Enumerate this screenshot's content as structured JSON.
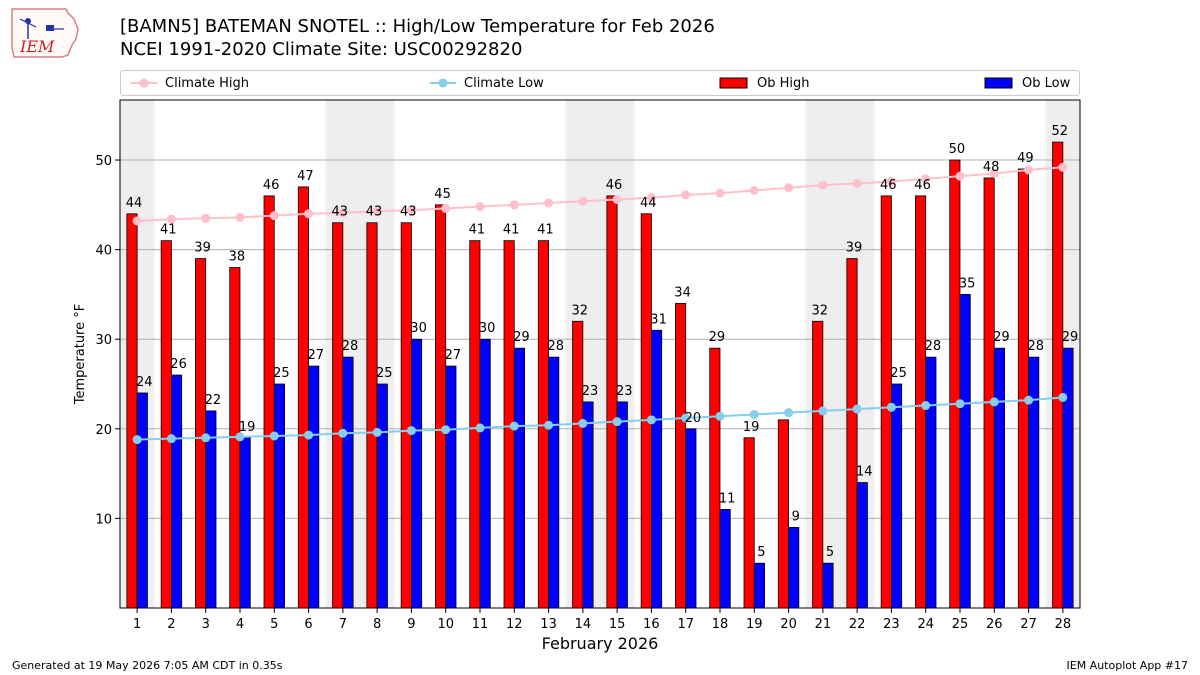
{
  "title_line1": "[BAMN5] BATEMAN SNOTEL :: High/Low Temperature for Feb 2026",
  "title_line2": "NCEI 1991-2020 Climate Site: USC00292820",
  "logo_text": "IEM",
  "footer_left": "Generated at 19 May 2026 7:05 AM CDT in 0.35s",
  "footer_right": "IEM Autoplot App #17",
  "legend": [
    {
      "label": "Climate High",
      "color": "#ffc0cb",
      "kind": "line-marker"
    },
    {
      "label": "Climate Low",
      "color": "#87ceeb",
      "kind": "line-marker"
    },
    {
      "label": "Ob High",
      "color": "#ff0000",
      "kind": "box"
    },
    {
      "label": "Ob Low",
      "color": "#0000ff",
      "kind": "box"
    }
  ],
  "colors": {
    "weekend_shade": "#eeeeee",
    "grid": "#b0b0b0"
  },
  "chart_data": {
    "type": "bar",
    "xlabel": "February 2026",
    "ylabel": "Temperature °F",
    "ylim": [
      0,
      56.7
    ],
    "yticks": [
      10,
      20,
      30,
      40,
      50
    ],
    "grid": "horizontal",
    "categories": [
      "1",
      "2",
      "3",
      "4",
      "5",
      "6",
      "7",
      "8",
      "9",
      "10",
      "11",
      "12",
      "13",
      "14",
      "15",
      "16",
      "17",
      "18",
      "19",
      "20",
      "21",
      "22",
      "23",
      "24",
      "25",
      "26",
      "27",
      "28"
    ],
    "shaded_days": [
      1,
      7,
      8,
      14,
      15,
      21,
      22,
      28
    ],
    "series": [
      {
        "name": "Ob High",
        "color": "#ff0000",
        "values": [
          44,
          41,
          39,
          38,
          46,
          47,
          43,
          43,
          43,
          45,
          41,
          41,
          41,
          32,
          46,
          44,
          34,
          29,
          19,
          21,
          32,
          39,
          46,
          46,
          50,
          48,
          49,
          52
        ],
        "labels": [
          "44",
          "41",
          "39",
          "38",
          "46",
          "47",
          "43",
          "43",
          "43",
          "45",
          "41",
          "41",
          "41",
          "32",
          "46",
          "44",
          "34",
          "29",
          "19",
          "",
          "32",
          "39",
          "46",
          "46",
          "50",
          "48",
          "49",
          "52"
        ]
      },
      {
        "name": "Ob Low",
        "color": "#0000ff",
        "values": [
          24,
          26,
          22,
          19,
          25,
          27,
          28,
          25,
          30,
          27,
          30,
          29,
          28,
          23,
          23,
          31,
          20,
          11,
          5,
          9,
          5,
          14,
          25,
          28,
          35,
          29,
          28,
          29
        ],
        "labels": [
          "24",
          "26",
          "22",
          "19",
          "25",
          "27",
          "28",
          "25",
          "30",
          "27",
          "30",
          "29",
          "28",
          "23",
          "23",
          "31",
          "20",
          "11",
          "5",
          "9",
          "5",
          "14",
          "25",
          "28",
          "35",
          "29",
          "28",
          "29"
        ]
      },
      {
        "name": "Climate High",
        "color": "#ffc0cb",
        "values": [
          43.2,
          43.4,
          43.5,
          43.6,
          43.8,
          44.0,
          44.1,
          44.3,
          44.4,
          44.6,
          44.8,
          45.0,
          45.2,
          45.4,
          45.6,
          45.8,
          46.1,
          46.3,
          46.6,
          46.9,
          47.2,
          47.4,
          47.6,
          47.9,
          48.2,
          48.5,
          48.9,
          49.2
        ]
      },
      {
        "name": "Climate Low",
        "color": "#87ceeb",
        "values": [
          18.8,
          18.9,
          19.0,
          19.1,
          19.2,
          19.3,
          19.5,
          19.6,
          19.8,
          19.9,
          20.1,
          20.3,
          20.4,
          20.6,
          20.8,
          21.0,
          21.2,
          21.4,
          21.6,
          21.8,
          22.0,
          22.2,
          22.4,
          22.6,
          22.8,
          23.0,
          23.2,
          23.5
        ]
      }
    ]
  }
}
